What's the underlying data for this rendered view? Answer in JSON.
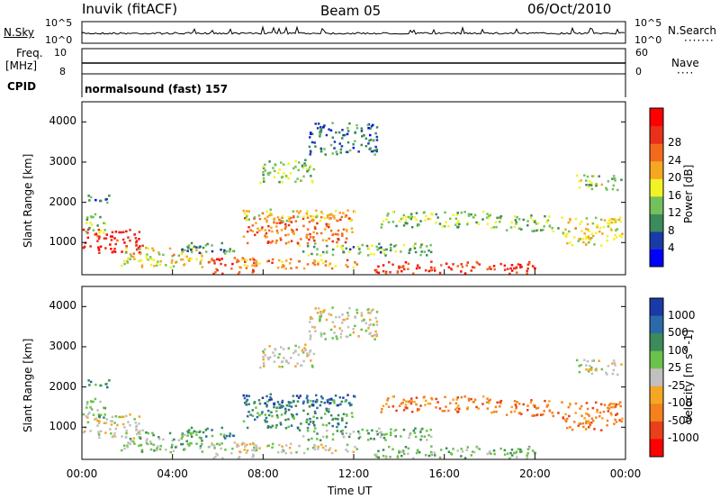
{
  "header": {
    "station": "Inuvik (fitACF)",
    "beam": "Beam 05",
    "date": "06/Oct/2010"
  },
  "top_panels": {
    "nsky_label": "N.Sky",
    "nsky_ticks": [
      "10^5",
      "10^0"
    ],
    "nsearch_label": "N.Search",
    "nsearch_ticks": [
      "10^5",
      "10^0"
    ],
    "freq_label": "Freq.",
    "freq_unit": "[MHz]",
    "freq_ticks": [
      "10",
      "8"
    ],
    "nave_label": "Nave",
    "nave_ticks": [
      "60",
      "0"
    ],
    "cpid_label": "CPID",
    "cpid_value": "normalsound (fast) 157"
  },
  "colors": {
    "power_scale": [
      "#0000ff",
      "#1a3aa8",
      "#3d8a5a",
      "#73c15a",
      "#f2f226",
      "#f5a623",
      "#f26b1d",
      "#e8301a",
      "#ff0000"
    ],
    "velocity_scale": [
      "#ff0000",
      "#e8401a",
      "#f5801e",
      "#f5a623",
      "#c0c0c0",
      "#6ac24a",
      "#3d8a5a",
      "#2a6aa8",
      "#1a3aa8"
    ]
  },
  "chart_data": [
    {
      "type": "heatmap",
      "title": "",
      "xlabel": "Time UT",
      "ylabel": "Slant Range [km]",
      "x_ticks": [
        "00:00",
        "04:00",
        "08:00",
        "12:00",
        "16:00",
        "20:00",
        "00:00"
      ],
      "y_ticks": [
        "1000",
        "2000",
        "3000",
        "4000"
      ],
      "ylim": [
        200,
        4500
      ],
      "colorbar_label": "Power [dB]",
      "colorbar_ticks": [
        "4",
        "8",
        "12",
        "16",
        "20",
        "24",
        "28"
      ],
      "colorbar_range": [
        0,
        30
      ]
    },
    {
      "type": "heatmap",
      "title": "",
      "xlabel": "Time UT",
      "ylabel": "Slant Range [km]",
      "x_ticks": [
        "00:00",
        "04:00",
        "08:00",
        "12:00",
        "16:00",
        "20:00",
        "00:00"
      ],
      "y_ticks": [
        "1000",
        "2000",
        "3000",
        "4000"
      ],
      "ylim": [
        200,
        4500
      ],
      "colorbar_label": "Velocity [m s^-1]",
      "colorbar_ticks": [
        "1000",
        "500",
        "100",
        "25",
        "-25",
        "-100",
        "-500",
        "-1000"
      ]
    }
  ]
}
